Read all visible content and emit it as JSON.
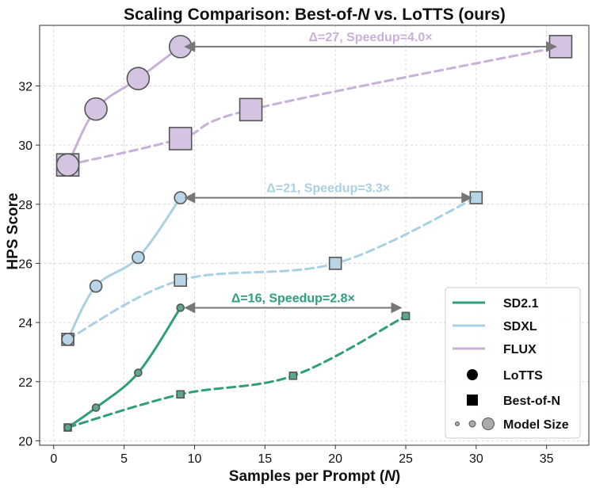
{
  "chart_data": {
    "type": "line",
    "title_prefix": "Scaling Comparison: Best-of-",
    "title_italic": "N",
    "title_suffix": " vs. LoTTS (ours)",
    "xlabel_prefix": "Samples per Prompt (",
    "xlabel_italic": "N",
    "xlabel_suffix": ")",
    "ylabel": "HPS Score",
    "xlim": [
      -1,
      38
    ],
    "ylim": [
      19.85,
      34.05
    ],
    "xticks": [
      0,
      5,
      10,
      15,
      20,
      25,
      30,
      35
    ],
    "yticks": [
      20,
      22,
      24,
      26,
      28,
      30,
      32
    ],
    "grid": true,
    "series": [
      {
        "name": "SD2.1",
        "color": "#2e9e7b",
        "face": "#5ca88a",
        "marker_size": "small",
        "lotts": {
          "x": [
            1,
            3,
            6,
            9
          ],
          "y": [
            20.45,
            21.12,
            22.3,
            24.5
          ]
        },
        "best_of_n": {
          "x": [
            1,
            9,
            17,
            25
          ],
          "y": [
            20.45,
            21.57,
            22.2,
            24.22
          ]
        }
      },
      {
        "name": "SDXL",
        "color": "#a9d0e3",
        "face": "#b7d5e6",
        "marker_size": "medium",
        "lotts": {
          "x": [
            1,
            3,
            6,
            9
          ],
          "y": [
            23.43,
            25.23,
            26.2,
            28.22
          ]
        },
        "best_of_n": {
          "x": [
            1,
            9,
            20,
            30
          ],
          "y": [
            23.43,
            25.43,
            26.0,
            28.22
          ]
        }
      },
      {
        "name": "FLUX",
        "color": "#c8b1d8",
        "face": "#d4c4e1",
        "marker_size": "large",
        "lotts": {
          "x": [
            1,
            3,
            6,
            9
          ],
          "y": [
            29.33,
            31.22,
            32.25,
            33.33
          ]
        },
        "best_of_n": {
          "x": [
            1,
            9,
            14,
            36
          ],
          "y": [
            29.33,
            30.22,
            31.2,
            33.33
          ]
        }
      }
    ],
    "annotations": [
      {
        "text": "Δ=16, Speedup=2.8×",
        "series": "SD2.1",
        "from_x": 9,
        "to_x": 25,
        "y": 24.5,
        "color": "#2e9e7b"
      },
      {
        "text": "Δ=21, Speedup=3.3×",
        "series": "SDXL",
        "from_x": 9,
        "to_x": 30,
        "y": 28.22,
        "color": "#a9d0e3"
      },
      {
        "text": "Δ=27, Speedup=4.0×",
        "series": "FLUX",
        "from_x": 9,
        "to_x": 36,
        "y": 33.33,
        "color": "#c8b1d8"
      }
    ],
    "legend": {
      "position": "bottom-right",
      "entries": [
        "SD2.1",
        "SDXL",
        "FLUX",
        "LoTTS",
        "Best-of-N",
        "Model Size"
      ]
    }
  }
}
